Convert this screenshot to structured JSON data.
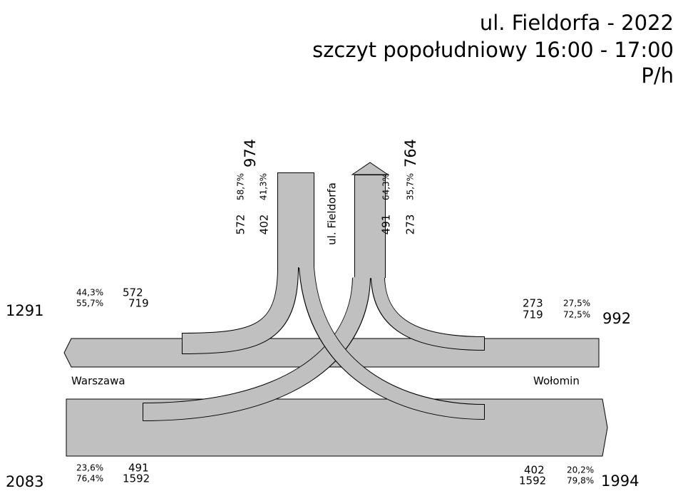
{
  "title": [
    "ul. Fieldorfa - 2022",
    "szczyt popołudniowy 16:00 - 17:00",
    "P/h"
  ],
  "roads": {
    "north": "ul. Fieldorfa",
    "west": "Warszawa",
    "east": "Wołomin"
  },
  "north": {
    "in_total": 974,
    "out_total": 764,
    "in_pct": [
      "58,7%",
      "41,3%"
    ],
    "in_values": [
      572,
      402
    ],
    "out_pct": [
      "64,3%",
      "35,7%"
    ],
    "out_values": [
      491,
      273
    ]
  },
  "west": {
    "out_total": 1291,
    "out_pct": [
      "44,3%",
      "55,7%"
    ],
    "out_values": [
      572,
      719
    ],
    "in_total": 2083,
    "in_pct": [
      "23,6%",
      "76,4%"
    ],
    "in_values": [
      491,
      1592
    ]
  },
  "east": {
    "in_total": 992,
    "in_values": [
      273,
      719
    ],
    "in_pct": [
      "27,5%",
      "72,5%"
    ],
    "out_total": 1994,
    "out_values": [
      402,
      1592
    ],
    "out_pct": [
      "20,2%",
      "79,8%"
    ]
  }
}
